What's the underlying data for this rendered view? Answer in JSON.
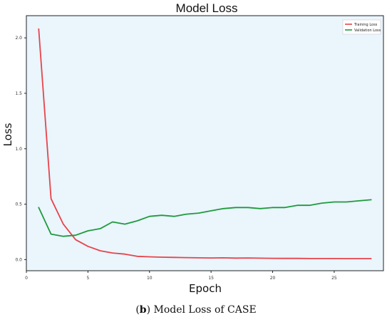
{
  "chart_data": {
    "type": "line",
    "title": "Model Loss",
    "xlabel": "Epoch",
    "ylabel": "Loss",
    "xlim": [
      0,
      29
    ],
    "ylim": [
      -0.1,
      2.2
    ],
    "xticks": [
      0,
      5,
      10,
      15,
      20,
      25
    ],
    "xtick_labels": [
      "0",
      "5",
      "10",
      "15",
      "20",
      "25"
    ],
    "yticks": [
      0.0,
      0.5,
      1.0,
      1.5,
      2.0
    ],
    "ytick_labels": [
      "0.0",
      "0.5",
      "1.0",
      "1.5",
      "2.0"
    ],
    "grid": false,
    "legend_position": "top-right",
    "background": "#eaf5fc",
    "x": [
      1,
      2,
      3,
      4,
      5,
      6,
      7,
      8,
      9,
      10,
      11,
      12,
      13,
      14,
      15,
      16,
      17,
      18,
      19,
      20,
      21,
      22,
      23,
      24,
      25,
      26,
      27,
      28
    ],
    "series": [
      {
        "name": "Training Loss",
        "color": "#e8434a",
        "values": [
          2.08,
          0.55,
          0.32,
          0.18,
          0.12,
          0.08,
          0.06,
          0.05,
          0.03,
          0.025,
          0.022,
          0.02,
          0.018,
          0.016,
          0.015,
          0.016,
          0.014,
          0.015,
          0.013,
          0.012,
          0.011,
          0.011,
          0.01,
          0.01,
          0.01,
          0.009,
          0.009,
          0.009
        ]
      },
      {
        "name": "Validation Loss",
        "color": "#1e9a3c",
        "values": [
          0.47,
          0.23,
          0.21,
          0.22,
          0.26,
          0.28,
          0.34,
          0.32,
          0.35,
          0.39,
          0.4,
          0.39,
          0.41,
          0.42,
          0.44,
          0.46,
          0.47,
          0.47,
          0.46,
          0.47,
          0.47,
          0.49,
          0.49,
          0.51,
          0.52,
          0.52,
          0.53,
          0.54
        ]
      }
    ]
  },
  "caption": {
    "label": "b",
    "text": " Model Loss of CASE"
  }
}
